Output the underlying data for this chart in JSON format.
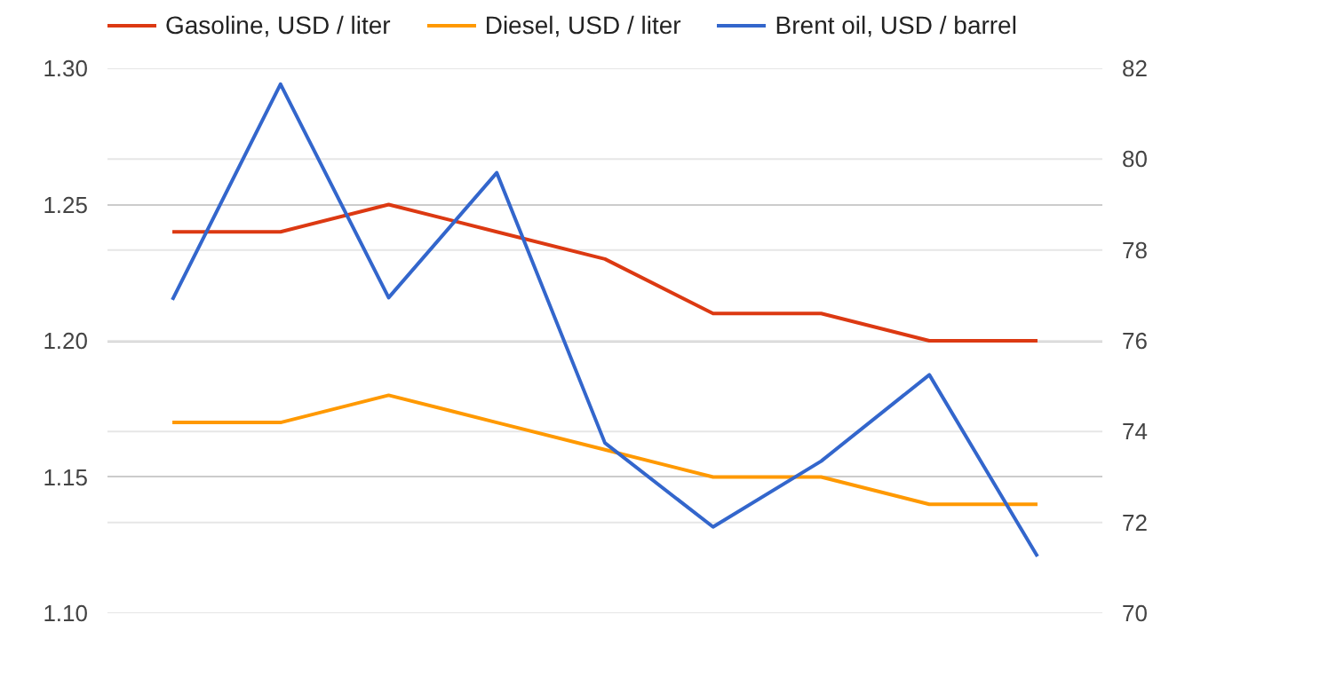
{
  "chart_data": {
    "type": "line",
    "categories": [
      null,
      null,
      null,
      null,
      null,
      null,
      null,
      null,
      null
    ],
    "series": [
      {
        "name": "Gasoline, USD / liter",
        "color": "#dc3912",
        "values": [
          1.24,
          1.24,
          1.25,
          1.24,
          1.23,
          1.21,
          1.21,
          1.2,
          1.2
        ]
      },
      {
        "name": "Diesel, USD / liter",
        "color": "#ff9900",
        "values": [
          1.17,
          1.17,
          1.18,
          1.17,
          1.16,
          1.15,
          1.15,
          1.14,
          1.14
        ]
      },
      {
        "name": "Brent oil, USD / barrel",
        "color": "#3366cc",
        "axis": "y2",
        "values": [
          76.9,
          81.65,
          76.95,
          79.7,
          73.75,
          71.9,
          73.35,
          75.25,
          71.25
        ]
      }
    ],
    "ylim": [
      1.1,
      1.3
    ],
    "yticks": [
      {
        "value": 1.1,
        "label": "1.10"
      },
      {
        "value": 1.15,
        "label": "1.15"
      },
      {
        "value": 1.2,
        "label": "1.20"
      },
      {
        "value": 1.25,
        "label": "1.25"
      },
      {
        "value": 1.3,
        "label": "1.30"
      }
    ],
    "y2lim": [
      70,
      82
    ],
    "y2ticks": [
      70,
      72,
      74,
      76,
      78,
      80,
      82
    ],
    "grid": true,
    "legend": "top",
    "marker": "none",
    "line_style": "solid"
  }
}
